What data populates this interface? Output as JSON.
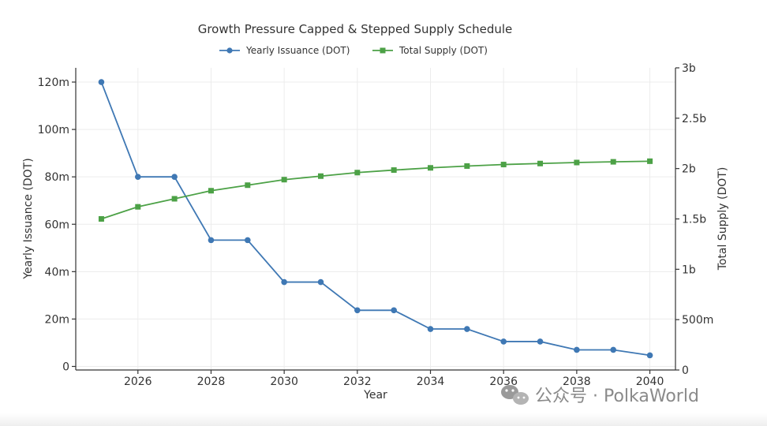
{
  "chart_data": {
    "type": "line",
    "title": "Growth Pressure Capped & Stepped Supply Schedule",
    "xlabel": "Year",
    "ylabel_left": "Yearly Issuance (DOT)",
    "ylabel_right": "Total Supply (DOT)",
    "x": [
      2025,
      2026,
      2027,
      2028,
      2029,
      2030,
      2031,
      2032,
      2033,
      2034,
      2035,
      2036,
      2037,
      2038,
      2039,
      2040
    ],
    "x_ticks": [
      2026,
      2028,
      2030,
      2032,
      2034,
      2036,
      2038,
      2040
    ],
    "xlim": [
      2024.3,
      2040.7
    ],
    "y_left_ticks": [
      {
        "value": 0,
        "label": "0"
      },
      {
        "value": 20000000,
        "label": "20m"
      },
      {
        "value": 40000000,
        "label": "40m"
      },
      {
        "value": 60000000,
        "label": "60m"
      },
      {
        "value": 80000000,
        "label": "80m"
      },
      {
        "value": 100000000,
        "label": "100m"
      },
      {
        "value": 120000000,
        "label": "120m"
      }
    ],
    "ylim_left": [
      -1500000,
      126000000
    ],
    "y_right_ticks": [
      {
        "value": 0,
        "label": "0"
      },
      {
        "value": 500000000,
        "label": "500m"
      },
      {
        "value": 1000000000,
        "label": "1b"
      },
      {
        "value": 1500000000,
        "label": "1.5b"
      },
      {
        "value": 2000000000,
        "label": "2b"
      },
      {
        "value": 2500000000,
        "label": "2.5b"
      },
      {
        "value": 3000000000,
        "label": "3b"
      }
    ],
    "ylim_right": [
      0,
      3000000000
    ],
    "grid": true,
    "legend_position": "top-center",
    "series": [
      {
        "name": "Yearly Issuance (DOT)",
        "axis": "left",
        "marker": "circle",
        "color": "#3f78b4",
        "values": [
          120000000,
          80000000,
          80000000,
          53300000,
          53300000,
          35600000,
          35600000,
          23700000,
          23700000,
          15800000,
          15800000,
          10500000,
          10500000,
          7000000,
          7000000,
          4700000
        ]
      },
      {
        "name": "Total Supply (DOT)",
        "axis": "right",
        "marker": "square",
        "color": "#4ca146",
        "values": [
          1500000000,
          1620000000,
          1700000000,
          1780000000,
          1835000000,
          1890000000,
          1925000000,
          1960000000,
          1985000000,
          2007000000,
          2025000000,
          2040000000,
          2050000000,
          2060000000,
          2067000000,
          2073000000
        ]
      }
    ]
  },
  "watermark": {
    "text": "公众号 · PolkaWorld",
    "icon": "wechat-icon"
  }
}
